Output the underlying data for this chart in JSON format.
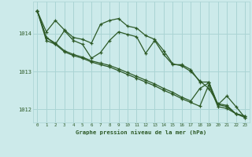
{
  "bg_color": "#cceaea",
  "grid_color": "#aad4d4",
  "line_color": "#2d5a27",
  "text_color": "#2d5a27",
  "xlabel": "Graphe pression niveau de la mer (hPa)",
  "xlim": [
    -0.5,
    23.5
  ],
  "ylim": [
    1011.65,
    1014.85
  ],
  "yticks": [
    1012,
    1013,
    1014
  ],
  "xticks": [
    0,
    1,
    2,
    3,
    4,
    5,
    6,
    7,
    8,
    9,
    10,
    11,
    12,
    13,
    14,
    15,
    16,
    17,
    18,
    19,
    20,
    21,
    22,
    23
  ],
  "series": [
    {
      "x": [
        0,
        1,
        2,
        3,
        4,
        5,
        6,
        7,
        8,
        9,
        10,
        11,
        12,
        13,
        14,
        15,
        16,
        17,
        18,
        19,
        20,
        21,
        22,
        23
      ],
      "y": [
        1014.6,
        1014.05,
        1014.35,
        1014.1,
        1013.9,
        1013.85,
        1013.75,
        1014.25,
        1014.35,
        1014.4,
        1014.2,
        1014.15,
        1013.95,
        1013.85,
        1013.55,
        1013.2,
        1013.15,
        1013.0,
        1012.75,
        1012.55,
        1012.15,
        1012.1,
        1011.88,
        1011.82
      ]
    },
    {
      "x": [
        0,
        1,
        2,
        3,
        4,
        5,
        6,
        7,
        8,
        9,
        10,
        11,
        12,
        13,
        14,
        15,
        16,
        17,
        18,
        19,
        20,
        21,
        22,
        23
      ],
      "y": [
        1014.6,
        1013.9,
        1013.75,
        1013.55,
        1013.45,
        1013.38,
        1013.28,
        1013.22,
        1013.16,
        1013.07,
        1012.97,
        1012.87,
        1012.77,
        1012.67,
        1012.55,
        1012.45,
        1012.32,
        1012.22,
        1012.55,
        1012.7,
        1012.12,
        1012.07,
        1011.88,
        1011.82
      ]
    },
    {
      "x": [
        0,
        1,
        2,
        3,
        4,
        5,
        6,
        7,
        8,
        9,
        10,
        11,
        12,
        13,
        14,
        15,
        16,
        17,
        18,
        19,
        20,
        21,
        22,
        23
      ],
      "y": [
        1014.6,
        1013.9,
        1013.72,
        1013.52,
        1013.42,
        1013.35,
        1013.25,
        1013.18,
        1013.12,
        1013.02,
        1012.92,
        1012.82,
        1012.72,
        1012.62,
        1012.5,
        1012.4,
        1012.28,
        1012.18,
        1012.08,
        1012.65,
        1012.07,
        1012.02,
        1011.88,
        1011.78
      ]
    },
    {
      "x": [
        0,
        1,
        2,
        3,
        4,
        5,
        6,
        7,
        8,
        9,
        10,
        11,
        12,
        13,
        14,
        15,
        16,
        17,
        18,
        19,
        20,
        21,
        22,
        23
      ],
      "y": [
        1014.6,
        1013.82,
        1013.72,
        1014.08,
        1013.82,
        1013.72,
        1013.35,
        1013.5,
        1013.82,
        1014.05,
        1013.98,
        1013.92,
        1013.48,
        1013.82,
        1013.45,
        1013.18,
        1013.18,
        1013.05,
        1012.72,
        1012.72,
        1012.12,
        1012.35,
        1012.07,
        1011.78
      ]
    }
  ]
}
